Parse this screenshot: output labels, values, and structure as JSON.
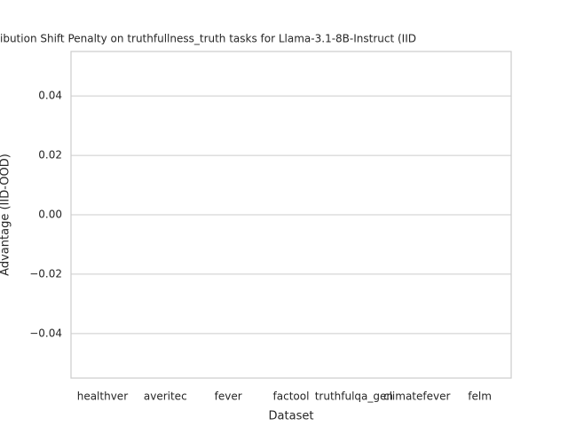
{
  "chart_data": {
    "type": "bar",
    "title": "ibution Shift Penalty on truthfullness_truth tasks for Llama-3.1-8B-Instruct (IID",
    "xlabel": "Dataset",
    "ylabel": "Advantage (IID-OOD)",
    "categories": [
      "healthver",
      "averitec",
      "fever",
      "factool",
      "truthfulqa_gen",
      "climatefever",
      "felm"
    ],
    "values": [
      null,
      null,
      null,
      null,
      null,
      null,
      null
    ],
    "color": "#4c72b0",
    "ylim": [
      -0.055,
      0.055
    ],
    "yticks": [
      {
        "value": -0.04,
        "label": "−0.04"
      },
      {
        "value": -0.02,
        "label": "−0.02"
      },
      {
        "value": 0,
        "label": "0.00"
      },
      0.02,
      0.04
    ],
    "grid": true
  }
}
